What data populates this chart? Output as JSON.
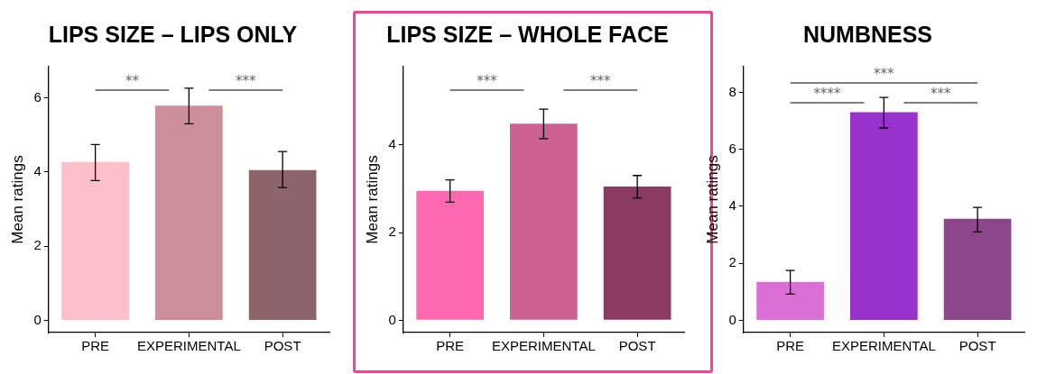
{
  "chart_data": [
    {
      "type": "bar",
      "title": "LIPS SIZE – LIPS ONLY",
      "ylabel": "Mean ratings",
      "categories": [
        "PRE",
        "EXPERIMENTAL",
        "POST"
      ],
      "values": [
        4.27,
        5.79,
        4.05
      ],
      "colors": [
        "#fdbfca",
        "#cc8f9a",
        "#8b656b"
      ],
      "errors": [
        [
          3.77,
          4.74
        ],
        [
          5.3,
          6.26
        ],
        [
          3.58,
          4.55
        ]
      ],
      "ylim": [
        -0.33,
        6.84
      ],
      "yticks": [
        0,
        2,
        4,
        6
      ],
      "grid": false,
      "legend": false,
      "annotations": [
        "**",
        "***"
      ]
    },
    {
      "type": "bar",
      "title": "LIPS SIZE – WHOLE FACE",
      "ylabel": "Mean ratings",
      "categories": [
        "PRE",
        "EXPERIMENTAL",
        "POST"
      ],
      "values": [
        2.95,
        4.48,
        3.05
      ],
      "colors": [
        "#ff69b0",
        "#cc6090",
        "#8b3a62"
      ],
      "errors": [
        [
          2.69,
          3.2
        ],
        [
          4.14,
          4.81
        ],
        [
          2.79,
          3.3
        ]
      ],
      "ylim": [
        -0.28,
        5.78
      ],
      "yticks": [
        0,
        2,
        4
      ],
      "grid": false,
      "legend": false,
      "annotations": [
        "***",
        "***"
      ]
    },
    {
      "type": "bar",
      "title": "NUMBNESS",
      "ylabel": "Mean ratings",
      "categories": [
        "PRE",
        "EXPERIMENTAL",
        "POST"
      ],
      "values": [
        1.35,
        7.3,
        3.56
      ],
      "colors": [
        "#da70d6",
        "#9932cc",
        "#8b4789"
      ],
      "errors": [
        [
          0.92,
          1.75
        ],
        [
          6.75,
          7.82
        ],
        [
          3.1,
          3.96
        ]
      ],
      "ylim": [
        -0.43,
        8.9
      ],
      "yticks": [
        0,
        2,
        4,
        6,
        8
      ],
      "grid": false,
      "legend": false,
      "annotations": [
        "***",
        "****",
        "***"
      ]
    }
  ]
}
